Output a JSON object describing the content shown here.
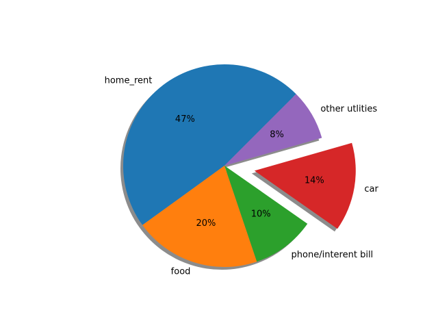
{
  "chart_data": {
    "type": "pie",
    "title": "",
    "start_angle_deg": 45,
    "counterclock": true,
    "shadow": true,
    "slices": [
      {
        "label": "home_rent",
        "percent_label": "47%",
        "value": 47,
        "color": "#1f77b4",
        "explode": 0
      },
      {
        "label": "food",
        "percent_label": "20%",
        "value": 20,
        "color": "#ff7f0e",
        "explode": 0
      },
      {
        "label": "phone/interent bill",
        "percent_label": "10%",
        "value": 10,
        "color": "#2ca02c",
        "explode": 0
      },
      {
        "label": "car",
        "percent_label": "14%",
        "value": 14,
        "color": "#d62728",
        "explode": 0.3
      },
      {
        "label": "other utlities",
        "percent_label": "8%",
        "value": 8,
        "color": "#9467bd",
        "explode": 0
      }
    ]
  }
}
